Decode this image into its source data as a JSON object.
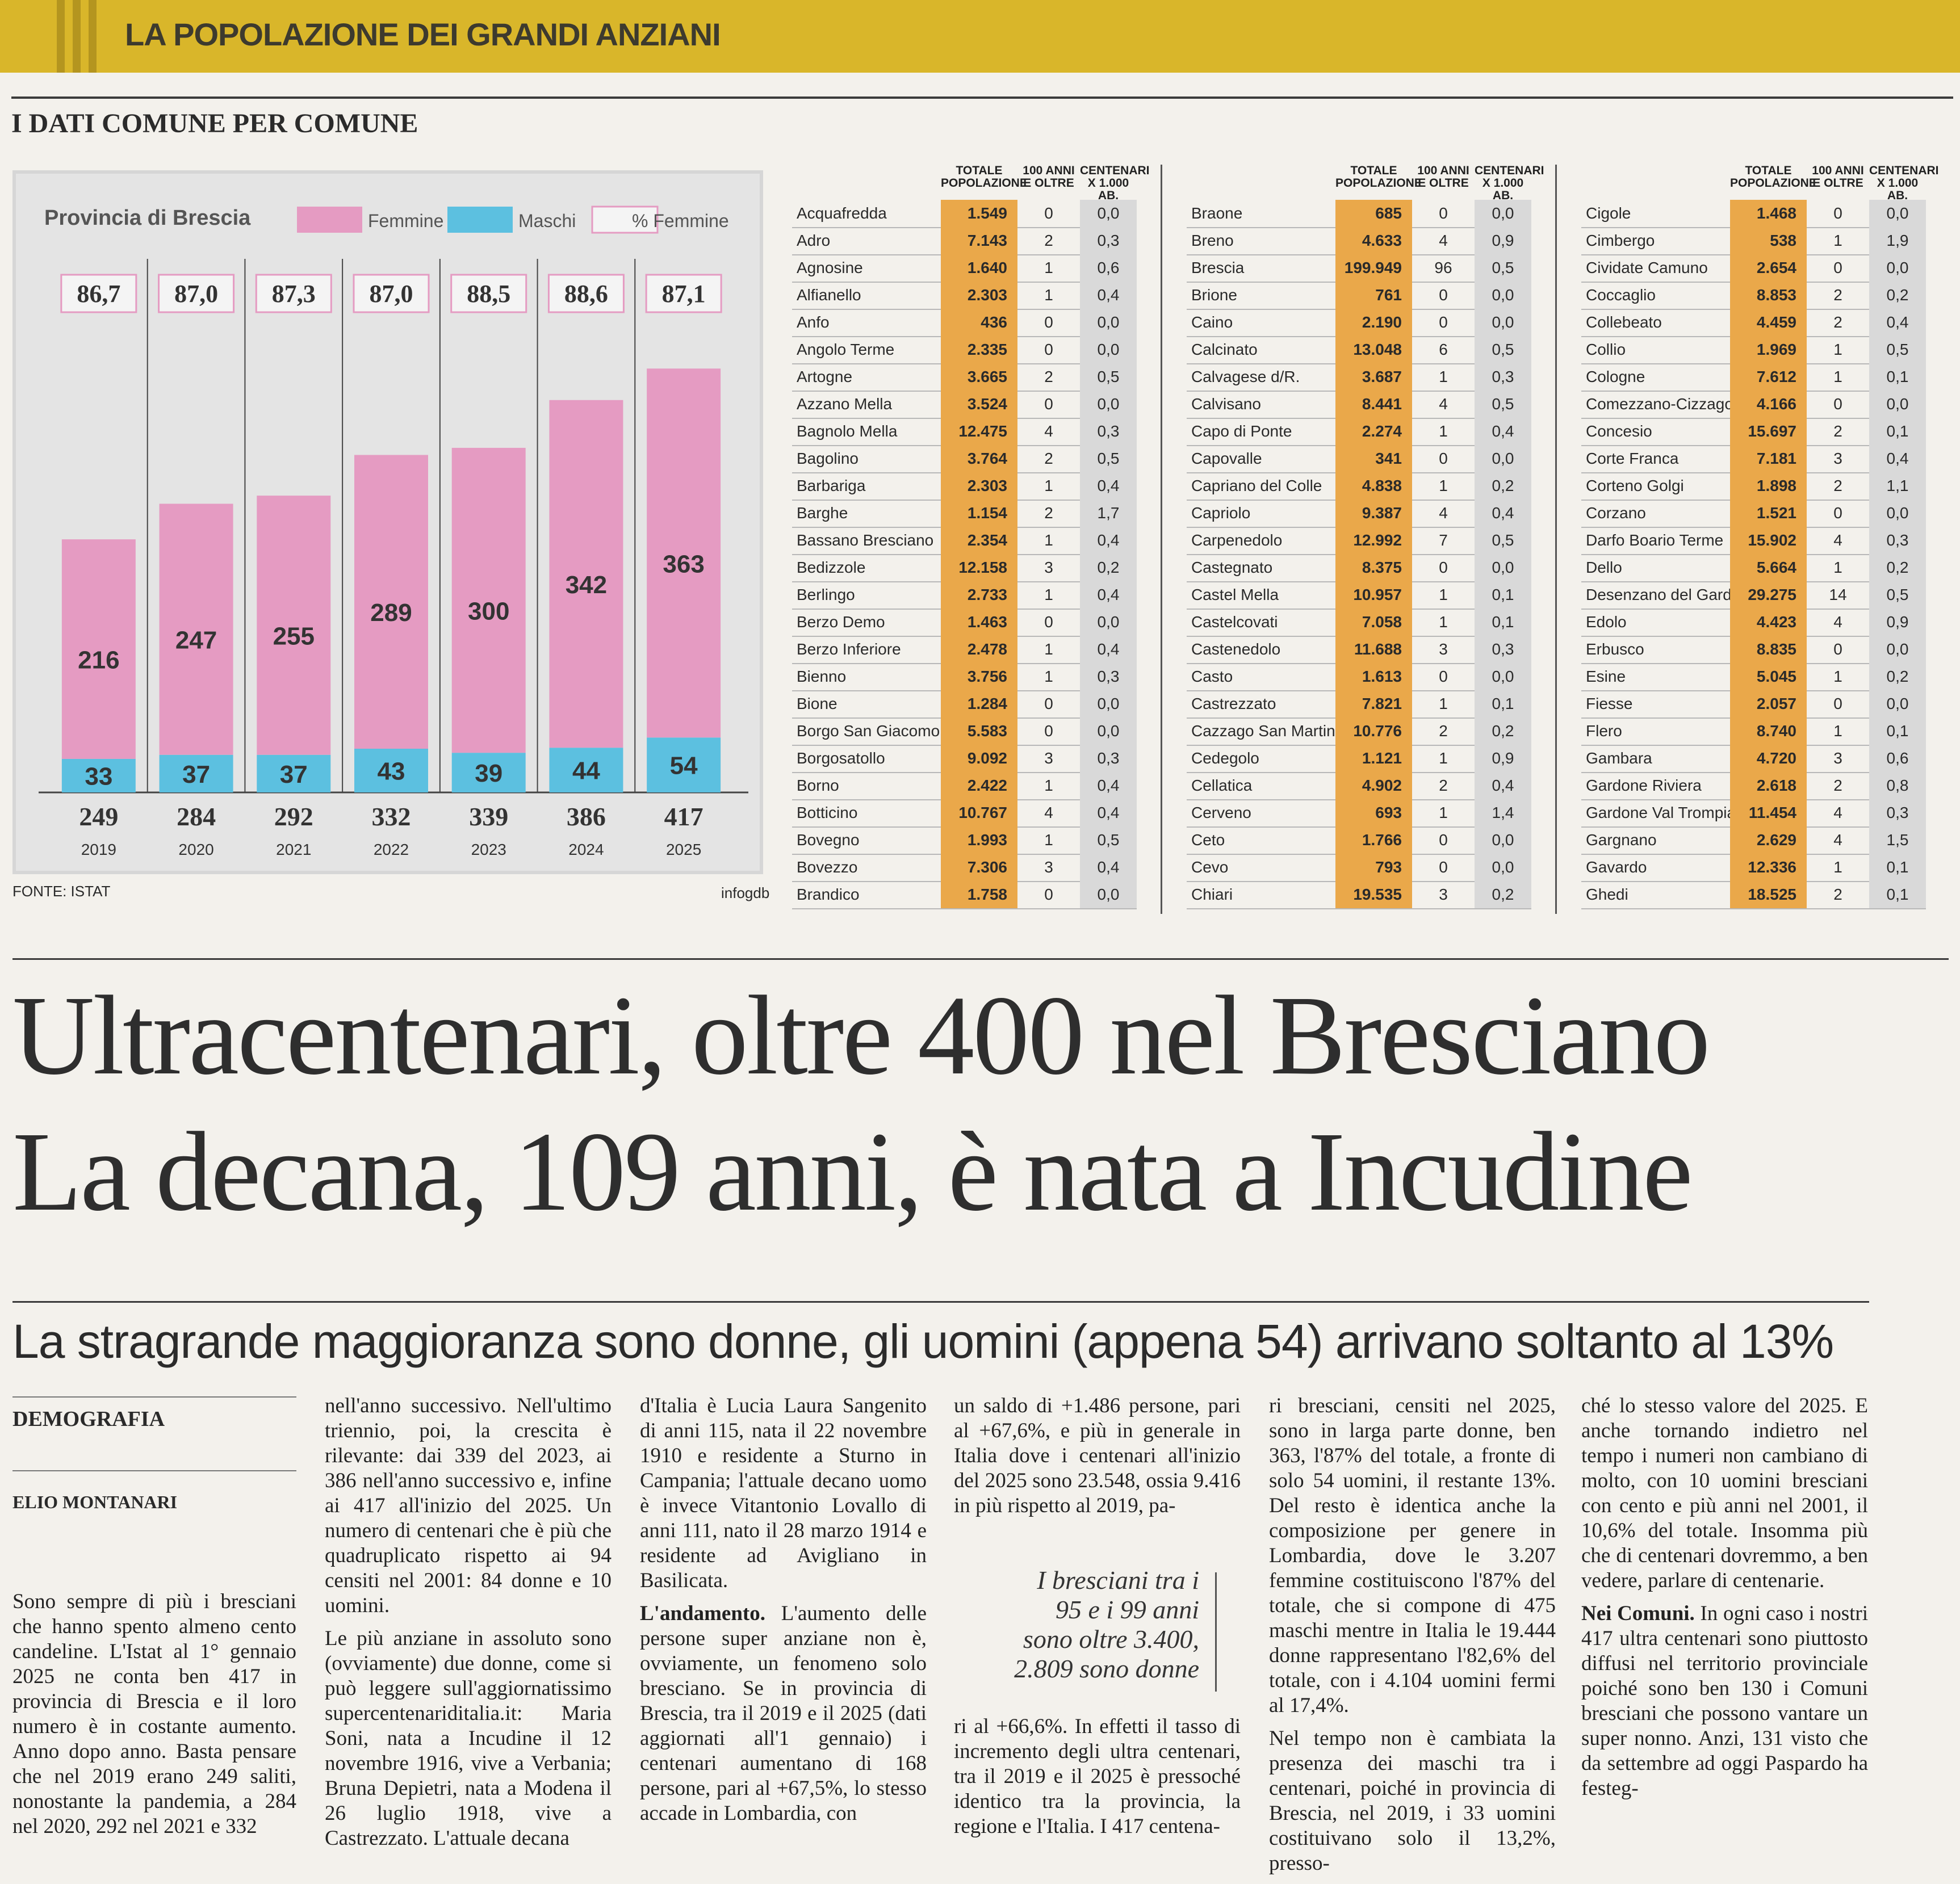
{
  "header": {
    "section_title": "LA POPOLAZIONE DEI GRANDI ANZIANI",
    "kicker": "I DATI COMUNE PER COMUNE"
  },
  "chart": {
    "legend_title": "Provincia di Brescia",
    "legend": [
      "Femmine",
      "Maschi",
      "% Femmine"
    ],
    "source": "FONTE: ISTAT",
    "credit": "infogdb"
  },
  "chart_data": {
    "type": "bar",
    "categories": [
      "2019",
      "2020",
      "2021",
      "2022",
      "2023",
      "2024",
      "2025"
    ],
    "series": [
      {
        "name": "Femmine",
        "values": [
          216,
          247,
          255,
          289,
          300,
          342,
          363
        ]
      },
      {
        "name": "Maschi",
        "values": [
          33,
          37,
          37,
          43,
          39,
          44,
          54
        ]
      }
    ],
    "totals": [
      "249",
      "284",
      "292",
      "332",
      "339",
      "386",
      "417"
    ],
    "pct_femmine": [
      "86,7",
      "87,0",
      "87,3",
      "87,0",
      "88,5",
      "88,6",
      "87,1"
    ],
    "colors": {
      "Femmine": "#e59bc2",
      "Maschi": "#5cc0e0",
      "pct_box": "#f4f4f4"
    },
    "stacked": true
  },
  "table_headers": {
    "pop": "TOTALE POPOLAZIONE",
    "c100": "100 ANNI E OLTRE",
    "rate": "CENTENARI X 1.000 AB."
  },
  "tables": [
    [
      [
        "Acquafredda",
        "1.549",
        "0",
        "0,0"
      ],
      [
        "Adro",
        "7.143",
        "2",
        "0,3"
      ],
      [
        "Agnosine",
        "1.640",
        "1",
        "0,6"
      ],
      [
        "Alfianello",
        "2.303",
        "1",
        "0,4"
      ],
      [
        "Anfo",
        "436",
        "0",
        "0,0"
      ],
      [
        "Angolo Terme",
        "2.335",
        "0",
        "0,0"
      ],
      [
        "Artogne",
        "3.665",
        "2",
        "0,5"
      ],
      [
        "Azzano Mella",
        "3.524",
        "0",
        "0,0"
      ],
      [
        "Bagnolo Mella",
        "12.475",
        "4",
        "0,3"
      ],
      [
        "Bagolino",
        "3.764",
        "2",
        "0,5"
      ],
      [
        "Barbariga",
        "2.303",
        "1",
        "0,4"
      ],
      [
        "Barghe",
        "1.154",
        "2",
        "1,7"
      ],
      [
        "Bassano Bresciano",
        "2.354",
        "1",
        "0,4"
      ],
      [
        "Bedizzole",
        "12.158",
        "3",
        "0,2"
      ],
      [
        "Berlingo",
        "2.733",
        "1",
        "0,4"
      ],
      [
        "Berzo Demo",
        "1.463",
        "0",
        "0,0"
      ],
      [
        "Berzo Inferiore",
        "2.478",
        "1",
        "0,4"
      ],
      [
        "Bienno",
        "3.756",
        "1",
        "0,3"
      ],
      [
        "Bione",
        "1.284",
        "0",
        "0,0"
      ],
      [
        "Borgo San Giacomo",
        "5.583",
        "0",
        "0,0"
      ],
      [
        "Borgosatollo",
        "9.092",
        "3",
        "0,3"
      ],
      [
        "Borno",
        "2.422",
        "1",
        "0,4"
      ],
      [
        "Botticino",
        "10.767",
        "4",
        "0,4"
      ],
      [
        "Bovegno",
        "1.993",
        "1",
        "0,5"
      ],
      [
        "Bovezzo",
        "7.306",
        "3",
        "0,4"
      ],
      [
        "Brandico",
        "1.758",
        "0",
        "0,0"
      ]
    ],
    [
      [
        "Braone",
        "685",
        "0",
        "0,0"
      ],
      [
        "Breno",
        "4.633",
        "4",
        "0,9"
      ],
      [
        "Brescia",
        "199.949",
        "96",
        "0,5"
      ],
      [
        "Brione",
        "761",
        "0",
        "0,0"
      ],
      [
        "Caino",
        "2.190",
        "0",
        "0,0"
      ],
      [
        "Calcinato",
        "13.048",
        "6",
        "0,5"
      ],
      [
        "Calvagese d/R.",
        "3.687",
        "1",
        "0,3"
      ],
      [
        "Calvisano",
        "8.441",
        "4",
        "0,5"
      ],
      [
        "Capo di Ponte",
        "2.274",
        "1",
        "0,4"
      ],
      [
        "Capovalle",
        "341",
        "0",
        "0,0"
      ],
      [
        "Capriano del Colle",
        "4.838",
        "1",
        "0,2"
      ],
      [
        "Capriolo",
        "9.387",
        "4",
        "0,4"
      ],
      [
        "Carpenedolo",
        "12.992",
        "7",
        "0,5"
      ],
      [
        "Castegnato",
        "8.375",
        "0",
        "0,0"
      ],
      [
        "Castel Mella",
        "10.957",
        "1",
        "0,1"
      ],
      [
        "Castelcovati",
        "7.058",
        "1",
        "0,1"
      ],
      [
        "Castenedolo",
        "11.688",
        "3",
        "0,3"
      ],
      [
        "Casto",
        "1.613",
        "0",
        "0,0"
      ],
      [
        "Castrezzato",
        "7.821",
        "1",
        "0,1"
      ],
      [
        "Cazzago San Martino",
        "10.776",
        "2",
        "0,2"
      ],
      [
        "Cedegolo",
        "1.121",
        "1",
        "0,9"
      ],
      [
        "Cellatica",
        "4.902",
        "2",
        "0,4"
      ],
      [
        "Cerveno",
        "693",
        "1",
        "1,4"
      ],
      [
        "Ceto",
        "1.766",
        "0",
        "0,0"
      ],
      [
        "Cevo",
        "793",
        "0",
        "0,0"
      ],
      [
        "Chiari",
        "19.535",
        "3",
        "0,2"
      ]
    ],
    [
      [
        "Cigole",
        "1.468",
        "0",
        "0,0"
      ],
      [
        "Cimbergo",
        "538",
        "1",
        "1,9"
      ],
      [
        "Cividate Camuno",
        "2.654",
        "0",
        "0,0"
      ],
      [
        "Coccaglio",
        "8.853",
        "2",
        "0,2"
      ],
      [
        "Collebeato",
        "4.459",
        "2",
        "0,4"
      ],
      [
        "Collio",
        "1.969",
        "1",
        "0,5"
      ],
      [
        "Cologne",
        "7.612",
        "1",
        "0,1"
      ],
      [
        "Comezzano-Cizzago",
        "4.166",
        "0",
        "0,0"
      ],
      [
        "Concesio",
        "15.697",
        "2",
        "0,1"
      ],
      [
        "Corte Franca",
        "7.181",
        "3",
        "0,4"
      ],
      [
        "Corteno Golgi",
        "1.898",
        "2",
        "1,1"
      ],
      [
        "Corzano",
        "1.521",
        "0",
        "0,0"
      ],
      [
        "Darfo Boario Terme",
        "15.902",
        "4",
        "0,3"
      ],
      [
        "Dello",
        "5.664",
        "1",
        "0,2"
      ],
      [
        "Desenzano del Garda",
        "29.275",
        "14",
        "0,5"
      ],
      [
        "Edolo",
        "4.423",
        "4",
        "0,9"
      ],
      [
        "Erbusco",
        "8.835",
        "0",
        "0,0"
      ],
      [
        "Esine",
        "5.045",
        "1",
        "0,2"
      ],
      [
        "Fiesse",
        "2.057",
        "0",
        "0,0"
      ],
      [
        "Flero",
        "8.740",
        "1",
        "0,1"
      ],
      [
        "Gambara",
        "4.720",
        "3",
        "0,6"
      ],
      [
        "Gardone Riviera",
        "2.618",
        "2",
        "0,8"
      ],
      [
        "Gardone Val Trompia",
        "11.454",
        "4",
        "0,3"
      ],
      [
        "Gargnano",
        "2.629",
        "4",
        "1,5"
      ],
      [
        "Gavardo",
        "12.336",
        "1",
        "0,1"
      ],
      [
        "Ghedi",
        "18.525",
        "2",
        "0,1"
      ]
    ]
  ],
  "headline": {
    "line1": "Ultracentenari, oltre 400 nel Bresciano",
    "line2": "La decana, 109 anni, è nata a Incudine",
    "subtitle": "La stragrande maggioranza sono donne, gli uomini (appena 54) arrivano soltanto al 13%"
  },
  "byline": {
    "rubric": "DEMOGRAFIA",
    "author": "ELIO MONTANARI"
  },
  "pullquote": "I bresciani tra i 95 e i 99 anni sono oltre 3.400, 2.809 sono donne",
  "body": {
    "col1": "Sono sempre di più i bresciani che hanno spento almeno cento candeline. L'Istat al 1° gennaio 2025 ne conta ben 417 in provincia di Brescia e il loro numero è in costante aumento. Anno dopo anno. Basta pensare che nel 2019 erano 249 saliti, nonostante la pandemia, a 284 nel 2020, 292 nel 2021 e 332",
    "col2_p1": "nell'anno successivo. Nell'ultimo triennio, poi, la crescita è rilevante: dai 339 del 2023, ai 386 nell'anno successivo e, infine ai 417 all'inizio del 2025. Un numero di centenari che è più che quadruplicato rispetto ai 94 censiti nel 2001: 84 donne e 10 uomini.",
    "col2_p2": "Le più anziane in assoluto sono (ovviamente) due donne, come si può leggere sull'aggiornatissimo supercentenariditalia.it: Maria Soni, nata a Incudine il 12 novembre 1916, vive a Verbania; Bruna Depietri, nata a Modena il 26 luglio 1918, vive a Castrezzato. L'attuale decana",
    "col3_p1": "d'Italia è Lucia Laura Sangenito di anni 115, nata il 22 novembre 1910 e residente a Sturno in Campania; l'attuale decano uomo è invece Vitantonio Lovallo di anni 111, nato il 28 marzo 1914 e residente ad Avigliano in Basilicata.",
    "col3_lead": "L'andamento.",
    "col3_p2": "L'aumento delle persone super anziane non è, ovviamente, un fenomeno solo bresciano. Se in provincia di Brescia, tra il 2019 e il 2025 (dati aggiornati all'1 gennaio) i centenari aumentano di 168 persone, pari al +67,5%, lo stesso accade in Lombardia, con",
    "col4_p1": "un saldo di +1.486 persone, pari al +67,6%, e più in generale in Italia dove i centenari all'inizio del 2025 sono 23.548, ossia 9.416 in più rispetto al 2019, pa-",
    "col4_p2": "ri al +66,6%. In effetti il tasso di incremento degli ultra centenari, tra il 2019 e il 2025 è pressoché identico tra la provincia, la regione e l'Italia. I 417 centena-",
    "col5_p1": "ri bresciani, censiti nel 2025, sono in larga parte donne, ben 363, l'87% del totale, a fronte di solo 54 uomini, il restante 13%. Del resto è identica anche la composizione per genere in Lombardia, dove le 3.207 femmine costituiscono l'87% del totale, che si compone di 475 maschi mentre in Italia le 19.444 donne rappresentano l'82,6% del totale, con i 4.104 uomini fermi al 17,4%.",
    "col5_p2": "Nel tempo non è cambiata la presenza dei maschi tra i centenari, poiché in provincia di Brescia, nel 2019, i 33 uomini costituivano solo il 13,2%, presso-",
    "col6_p1": "ché lo stesso valore del 2025. E anche tornando indietro nel tempo i numeri non cambiano di molto, con 10 uomini bresciani con cento e più anni nel 2001, il 10,6% del totale. Insomma più che di centenari dovremmo, a ben vedere, parlare di centenarie.",
    "col6_lead": "Nei Comuni.",
    "col6_p2": "In ogni caso i nostri 417 ultra centenari sono piuttosto diffusi nel territorio provinciale poiché sono ben 130 i Comuni bresciani che possono vantare un super nonno. Anzi, 131 visto che da settembre ad oggi Paspardo ha festeg-"
  }
}
